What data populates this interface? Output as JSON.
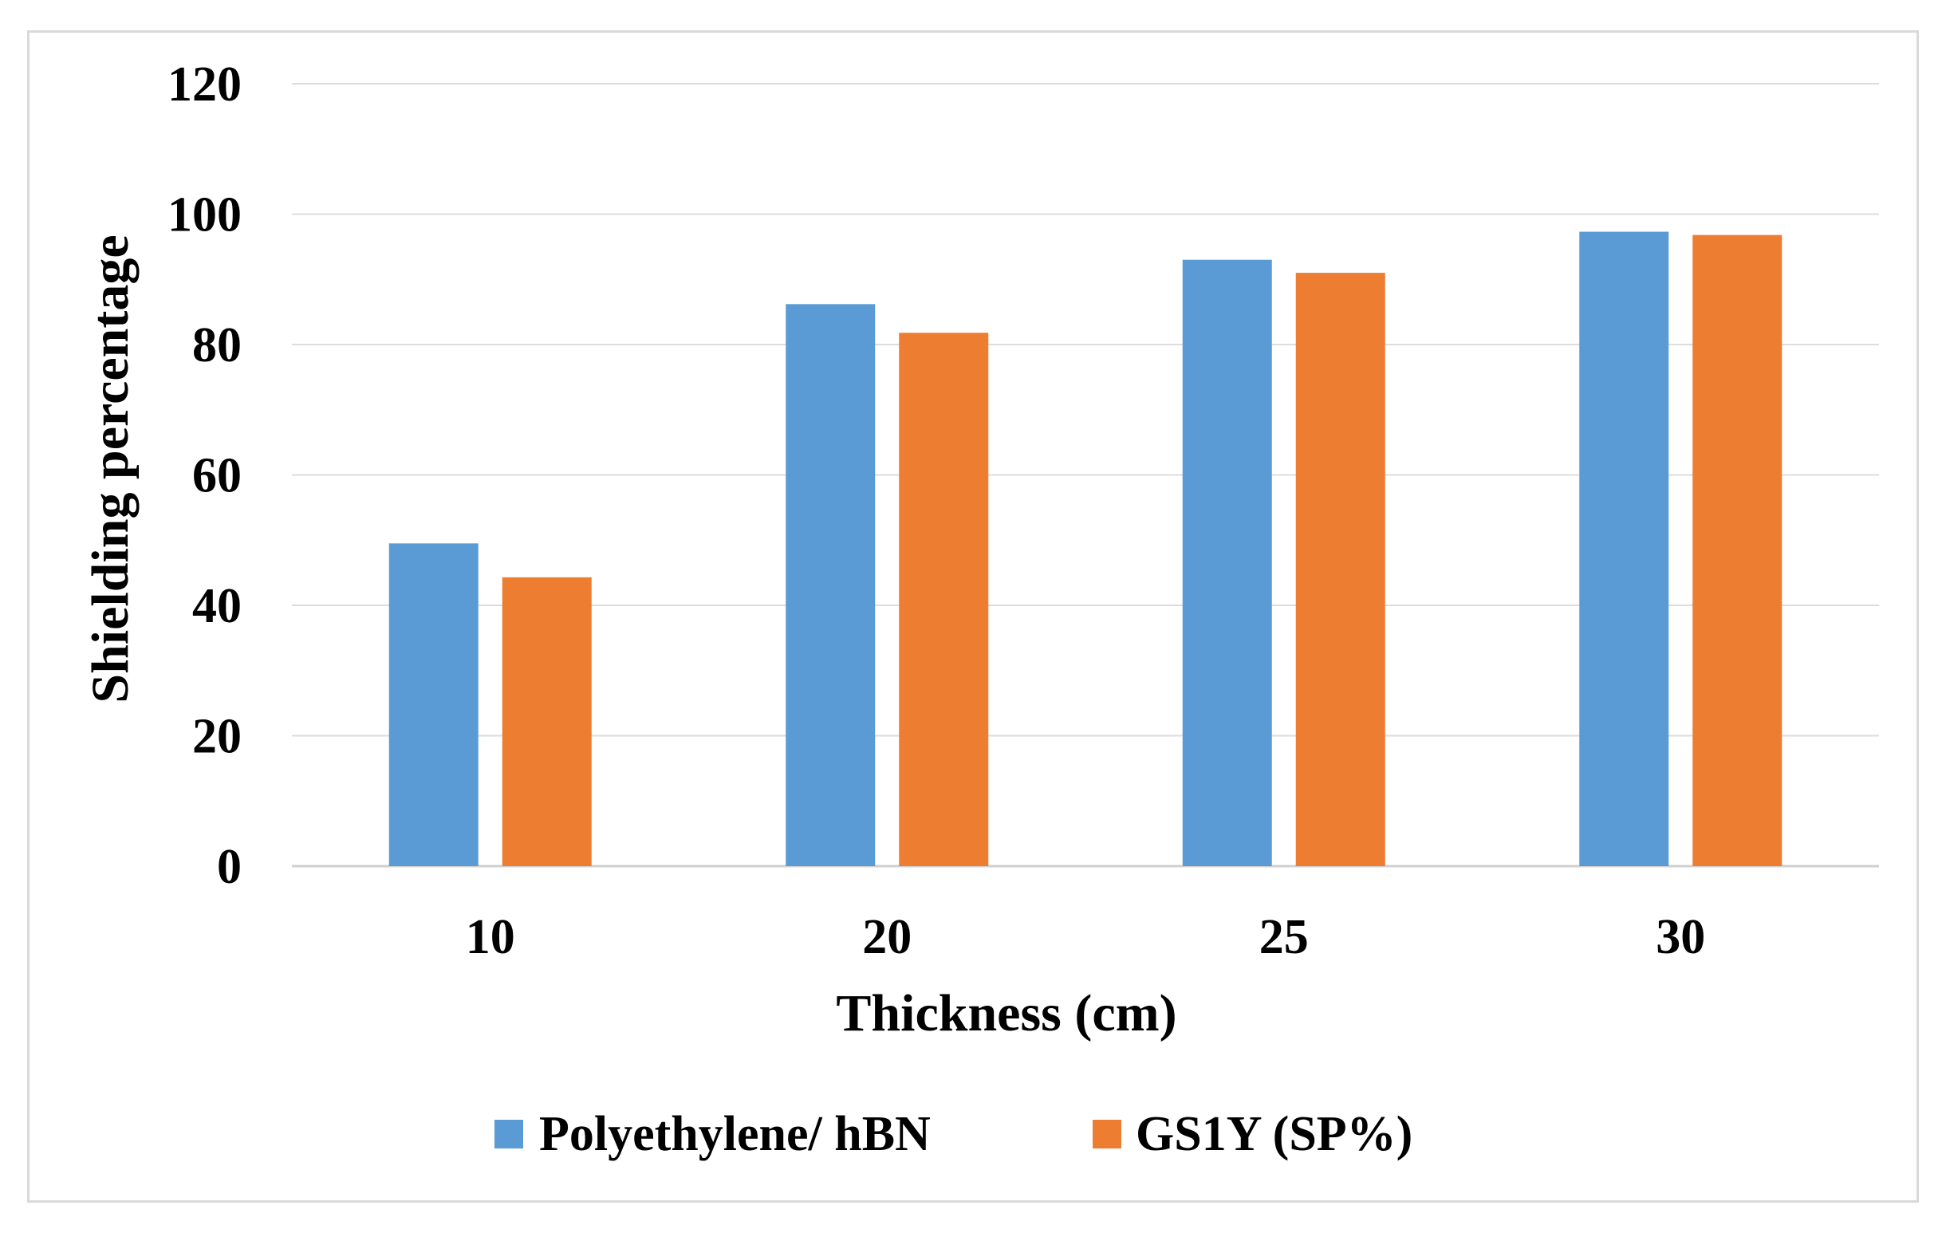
{
  "chart_data": {
    "type": "bar",
    "title": "",
    "xlabel": "Thickness (cm)",
    "ylabel": "Shielding percentage",
    "categories": [
      "10",
      "20",
      "25",
      "30"
    ],
    "ylim": [
      0,
      120
    ],
    "yticks": [
      "0",
      "20",
      "40",
      "60",
      "80",
      "100",
      "120"
    ],
    "grid": true,
    "legend_position": "bottom",
    "series": [
      {
        "name": "Polyethylene/ hBN",
        "color": "#5b9bd5",
        "values": [
          49.5,
          86.2,
          93,
          97.3
        ]
      },
      {
        "name": "GS1Y (SP%)",
        "color": "#ed7d31",
        "values": [
          44.3,
          81.8,
          91,
          96.8
        ]
      }
    ]
  }
}
